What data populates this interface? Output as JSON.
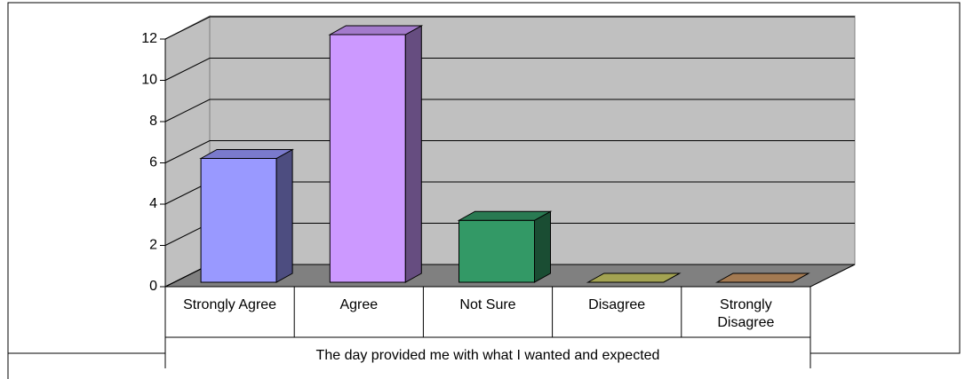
{
  "chart_data": {
    "type": "bar3d",
    "xlabel": "The day provided me with what I wanted and expected",
    "categories": [
      "Strongly Agree",
      "Agree",
      "Not Sure",
      "Disagree",
      "Strongly Disagree"
    ],
    "values": [
      6,
      12,
      3,
      0,
      0
    ],
    "colors": [
      "#9999ff",
      "#cc99ff",
      "#339966",
      "#cccc66",
      "#cc9966"
    ],
    "ylim": [
      0,
      12
    ],
    "yticks": [
      0,
      2,
      4,
      6,
      8,
      10,
      12
    ],
    "grid": true
  }
}
